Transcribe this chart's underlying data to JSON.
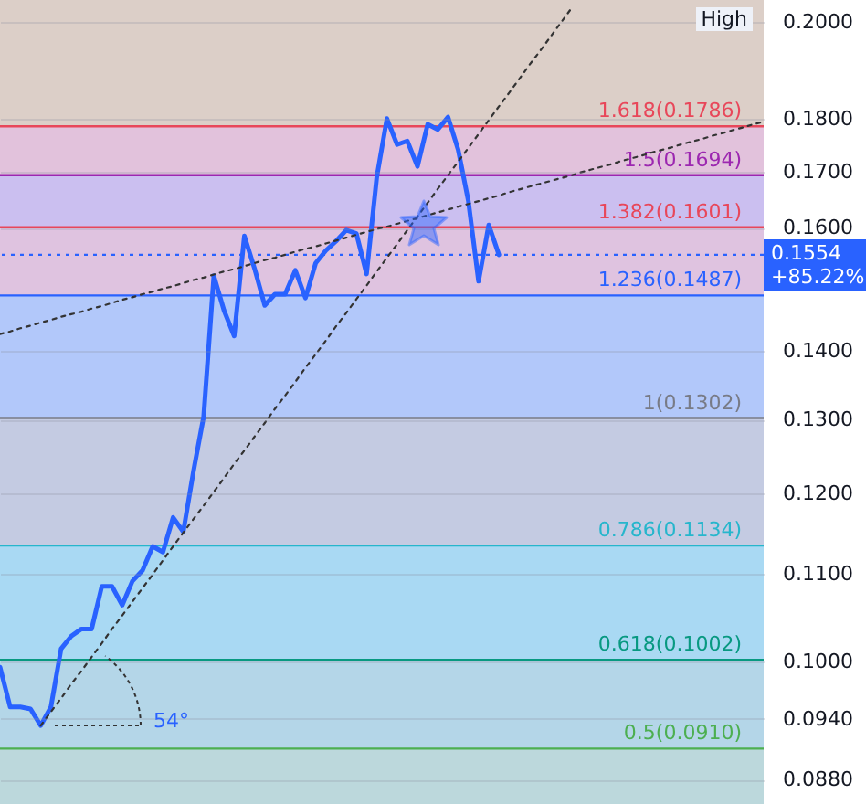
{
  "chart_data": {
    "type": "line",
    "categories": [
      null,
      null,
      null,
      null,
      null,
      null,
      null,
      null,
      null,
      null,
      null,
      null,
      null,
      null,
      null,
      null,
      null,
      null,
      null,
      null,
      null,
      null,
      null,
      null,
      null,
      null,
      null,
      null,
      null,
      null,
      null,
      null,
      null,
      null,
      null,
      null,
      null,
      null,
      null,
      null,
      null,
      null,
      null,
      null,
      null,
      null,
      null,
      null,
      null,
      null,
      null,
      null,
      null,
      null,
      null,
      null,
      null,
      null,
      null,
      null,
      null,
      null,
      null,
      null,
      null,
      null,
      null,
      null,
      null,
      null,
      null,
      null,
      null,
      null,
      null,
      null
    ],
    "series": [
      {
        "color": "#2962ff",
        "values": [
          0.0994,
          0.0952,
          0.0952,
          0.095,
          0.0933,
          0.0952,
          0.1014,
          0.1028,
          0.1036,
          0.1036,
          0.1085,
          0.1085,
          0.1063,
          0.1091,
          0.1104,
          0.1133,
          0.1126,
          0.1169,
          0.1151,
          0.1229,
          0.1304,
          0.1519,
          0.1463,
          0.1423,
          0.1586,
          0.1531,
          0.1471,
          0.1489,
          0.1489,
          0.1528,
          0.1483,
          0.154,
          0.1561,
          0.1577,
          0.1596,
          0.159,
          0.1522,
          0.169,
          0.1801,
          0.1751,
          0.1758,
          0.171,
          0.179,
          0.178,
          0.1804,
          0.1741,
          0.1647,
          0.151,
          0.1605,
          0.1554,
          null,
          null,
          null,
          null,
          null,
          null,
          null,
          null,
          null,
          null,
          null,
          null,
          null,
          null,
          null,
          null,
          null,
          null,
          null,
          null,
          null,
          null,
          null,
          null,
          null,
          null
        ]
      },
      {
        "type": "line",
        "color": "#333333",
        "line_style": "dotted",
        "values": [
          null,
          null,
          null,
          null,
          0.0933,
          0.0947,
          0.0961,
          0.0976,
          0.099,
          0.1005,
          0.102,
          0.1036,
          0.1051,
          0.1067,
          0.1083,
          0.1099,
          0.1116,
          0.1133,
          0.115,
          0.1167,
          0.1184,
          0.1202,
          0.122,
          0.1239,
          0.1257,
          0.1276,
          0.1295,
          0.1315,
          0.1334,
          0.1354,
          0.1375,
          0.1395,
          0.1416,
          0.1438,
          0.1459,
          0.1481,
          0.1503,
          0.1526,
          0.1549,
          0.1572,
          0.1596,
          0.162,
          0.1644,
          0.1669,
          0.1694,
          0.1719,
          0.1745,
          0.1771,
          0.1798,
          0.1825,
          0.1852,
          0.188,
          0.1909,
          0.1937,
          0.1966,
          0.1996,
          0.2026,
          null,
          null,
          null,
          null,
          null,
          null,
          null,
          null,
          null,
          null,
          null,
          null,
          null,
          null,
          null,
          null,
          null,
          null,
          null
        ]
      },
      {
        "type": "line",
        "color": "#333333",
        "line_style": "dotted",
        "values": [
          0.1426,
          0.143,
          0.1435,
          0.1439,
          0.1444,
          0.1448,
          0.1453,
          0.1457,
          0.1461,
          0.1466,
          0.147,
          0.1475,
          0.148,
          0.1484,
          0.1489,
          0.1493,
          0.1498,
          0.1502,
          0.1507,
          0.1512,
          0.1516,
          0.1521,
          0.1526,
          0.153,
          0.1535,
          0.154,
          0.1545,
          0.1549,
          0.1554,
          0.1559,
          0.1564,
          0.1568,
          0.1573,
          0.1578,
          0.1583,
          0.1588,
          0.1593,
          0.1598,
          0.1602,
          0.1607,
          0.1612,
          0.1617,
          0.1622,
          0.1627,
          0.1632,
          0.1637,
          0.1642,
          0.1647,
          0.1652,
          0.1657,
          0.1663,
          0.1668,
          0.1673,
          0.1678,
          0.1683,
          0.1688,
          0.1693,
          0.1699,
          0.1704,
          0.1709,
          0.1714,
          0.172,
          0.1725,
          0.173,
          0.1736,
          0.1741,
          0.1746,
          0.1752,
          0.1757,
          0.1762,
          0.1768,
          0.1773,
          0.1779,
          0.1784,
          0.179,
          0.1795
        ]
      }
    ],
    "log": true,
    "ylim": [
      0.0857,
      0.2048
    ],
    "yticks": [
      {
        "value": 0.088,
        "label": "0.0880"
      },
      {
        "value": 0.094,
        "label": "0.0940"
      },
      {
        "value": 0.1,
        "label": "0.1000"
      },
      {
        "value": 0.11,
        "label": "0.1100"
      },
      {
        "value": 0.12,
        "label": "0.1200"
      },
      {
        "value": 0.13,
        "label": "0.1300"
      },
      {
        "value": 0.14,
        "label": "0.1400"
      },
      {
        "value": 0.16,
        "label": "0.1600"
      },
      {
        "value": 0.17,
        "label": "0.1700"
      },
      {
        "value": 0.18,
        "label": "0.1800"
      },
      {
        "value": 0.2,
        "label": "0.2000"
      }
    ],
    "tick_labels": "y",
    "grid": "y",
    "bands": [
      {
        "axis": "y",
        "from": 0.1786,
        "to": 0.2048,
        "color": "#dccfc8"
      },
      {
        "axis": "y",
        "from": 0.1694,
        "to": 0.1786,
        "color": "#e2c2dc"
      },
      {
        "axis": "y",
        "from": 0.1601,
        "to": 0.1694,
        "color": "#cbbff0"
      },
      {
        "axis": "y",
        "from": 0.1487,
        "to": 0.1601,
        "color": "#dfc3e0"
      },
      {
        "axis": "y",
        "from": 0.1302,
        "to": 0.1487,
        "color": "#b2c8fa"
      },
      {
        "axis": "y",
        "from": 0.1134,
        "to": 0.1302,
        "color": "#c4cbe2"
      },
      {
        "axis": "y",
        "from": 0.1002,
        "to": 0.1134,
        "color": "#a9d9f3"
      },
      {
        "axis": "y",
        "from": 0.091,
        "to": 0.1002,
        "color": "#b4d6e8"
      },
      {
        "axis": "y",
        "from": 0.0857,
        "to": 0.091,
        "color": "#bcd8dc"
      }
    ],
    "ref_lines": [
      {
        "axis": "y",
        "value": 0.1786,
        "label": "1.618(0.1786)",
        "color": "#e8475a"
      },
      {
        "axis": "y",
        "value": 0.1694,
        "label": "1.5(0.1694)",
        "color": "#9c27b0"
      },
      {
        "axis": "y",
        "value": 0.1601,
        "label": "1.382(0.1601)",
        "color": "#e8475a"
      },
      {
        "axis": "y",
        "value": 0.1487,
        "label": "1.236(0.1487)",
        "color": "#2962ff"
      },
      {
        "axis": "y",
        "value": 0.1302,
        "label": "1(0.1302)",
        "color": "#787b86"
      },
      {
        "axis": "y",
        "value": 0.1134,
        "label": "0.786(0.1134)",
        "color": "#26b6cc"
      },
      {
        "axis": "y",
        "value": 0.1002,
        "label": "0.618(0.1002)",
        "color": "#089981"
      },
      {
        "axis": "y",
        "value": 0.091,
        "label": "0.5(0.0910)",
        "color": "#4caf50"
      },
      {
        "axis": "y",
        "value": 0.1554,
        "label": "0.1554",
        "color": "#2962ff",
        "line_style": "dotted"
      }
    ],
    "annotations": [
      "+85.22%",
      "High",
      "54°"
    ]
  }
}
